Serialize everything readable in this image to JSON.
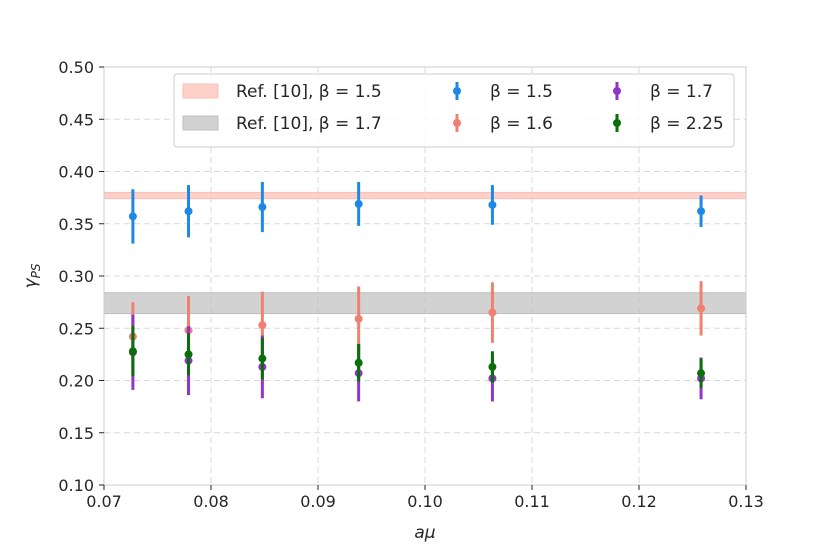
{
  "chart_data": {
    "type": "scatter",
    "xlabel": "aμ",
    "ylabel": "γ",
    "ylabel_sub": "PS",
    "xlim": [
      0.07,
      0.13
    ],
    "ylim": [
      0.1,
      0.5
    ],
    "xticks": [
      "0.07",
      "0.08",
      "0.09",
      "0.10",
      "0.11",
      "0.12",
      "0.13"
    ],
    "yticks": [
      "0.10",
      "0.15",
      "0.20",
      "0.25",
      "0.30",
      "0.35",
      "0.40",
      "0.45",
      "0.50"
    ],
    "grid": true,
    "legend_position": "top",
    "bands": [
      {
        "name": "Ref. [10], β = 1.5",
        "ymin": 0.374,
        "ymax": 0.38,
        "color": "#fcbdb4"
      },
      {
        "name": "Ref. [10], β = 1.7",
        "ymin": 0.264,
        "ymax": 0.284,
        "color": "#bfbfbf"
      }
    ],
    "series": [
      {
        "name": "β = 1.5",
        "color": "#1e88e5",
        "x": [
          0.0727,
          0.0779,
          0.0848,
          0.0938,
          0.1063,
          0.1258
        ],
        "y": [
          0.357,
          0.362,
          0.366,
          0.369,
          0.368,
          0.362
        ],
        "err": [
          0.026,
          0.025,
          0.024,
          0.021,
          0.019,
          0.015
        ]
      },
      {
        "name": "β = 1.6",
        "color": "#f08070",
        "x": [
          0.0727,
          0.0779,
          0.0848,
          0.0938,
          0.1063,
          0.1258
        ],
        "y": [
          0.242,
          0.248,
          0.253,
          0.259,
          0.265,
          0.269
        ],
        "err": [
          0.033,
          0.033,
          0.032,
          0.031,
          0.029,
          0.026
        ]
      },
      {
        "name": "β = 1.7",
        "color": "#8e36c9",
        "x": [
          0.0727,
          0.0779,
          0.0848,
          0.0938,
          0.1063,
          0.1258
        ],
        "y": [
          0.227,
          0.219,
          0.213,
          0.207,
          0.202,
          0.202
        ],
        "err": [
          0.036,
          0.033,
          0.03,
          0.027,
          0.022,
          0.02
        ]
      },
      {
        "name": "β = 2.25",
        "color": "#0a6e0a",
        "x": [
          0.0727,
          0.0779,
          0.0848,
          0.0938,
          0.1063,
          0.1258
        ],
        "y": [
          0.228,
          0.225,
          0.221,
          0.217,
          0.213,
          0.207
        ],
        "err": [
          0.024,
          0.02,
          0.02,
          0.018,
          0.015,
          0.014
        ]
      }
    ]
  }
}
